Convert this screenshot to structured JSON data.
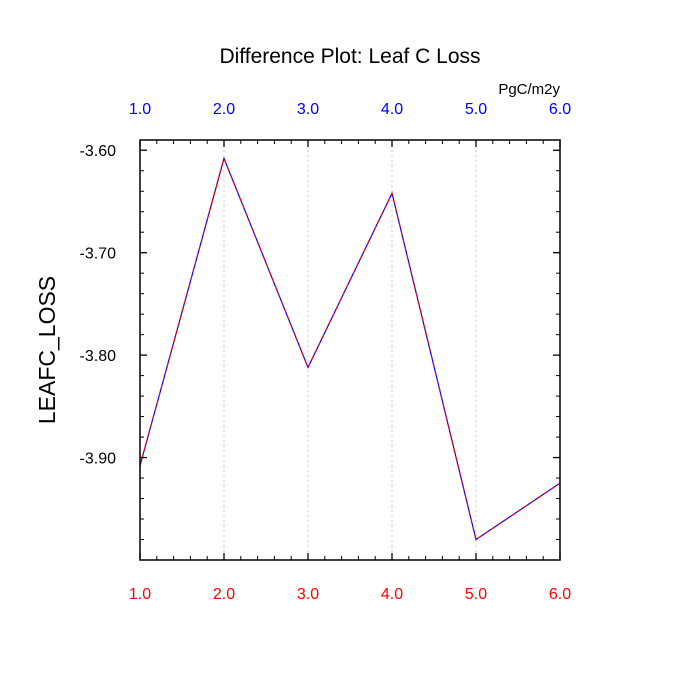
{
  "chart_data": {
    "type": "line",
    "title": "Difference Plot: Leaf C Loss",
    "units": "PgC/m2y",
    "xlabel": "",
    "ylabel": "LEAFC_LOSS",
    "x": [
      1,
      2,
      3,
      4,
      5,
      6
    ],
    "x_tick_labels_bottom": [
      "1.0",
      "2.0",
      "3.0",
      "4.0",
      "5.0",
      "6.0"
    ],
    "x_tick_labels_top": [
      "1.0",
      "2.0",
      "3.0",
      "4.0",
      "5.0",
      "6.0"
    ],
    "y_tick_labels": [
      "-3.60",
      "-3.70",
      "-3.80",
      "-3.90"
    ],
    "y_ticks": [
      -3.6,
      -3.7,
      -3.8,
      -3.9
    ],
    "xlim": [
      1,
      6
    ],
    "ylim": [
      -4.0,
      -3.59
    ],
    "series": [
      {
        "values": [
          -3.908,
          -3.608,
          -3.812,
          -3.642,
          -3.98,
          -3.925
        ],
        "color": "#0000ff",
        "dash_color": "#ff0000"
      }
    ],
    "grid": "vertical-dotted",
    "colors": {
      "bottom_axis_labels": "#ff0000",
      "top_axis_labels": "#0000ff",
      "grid": "#c8c8c8"
    }
  }
}
